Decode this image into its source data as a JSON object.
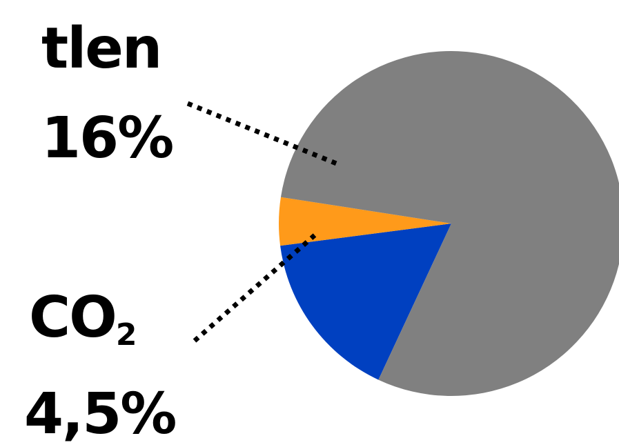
{
  "chart_data": {
    "type": "pie",
    "title": "",
    "slices": [
      {
        "label": "tlen",
        "display_value": "16%",
        "value": 16,
        "color": "#0040C0"
      },
      {
        "label": "CO2",
        "label_main": "CO",
        "label_sub": "2",
        "display_value": "4,5%",
        "value": 4.5,
        "color": "#FF9A1A"
      },
      {
        "label": "",
        "display_value": "",
        "value": 79.5,
        "color": "#808080"
      }
    ],
    "legend": "none",
    "annotation_style": "dotted leader lines"
  }
}
